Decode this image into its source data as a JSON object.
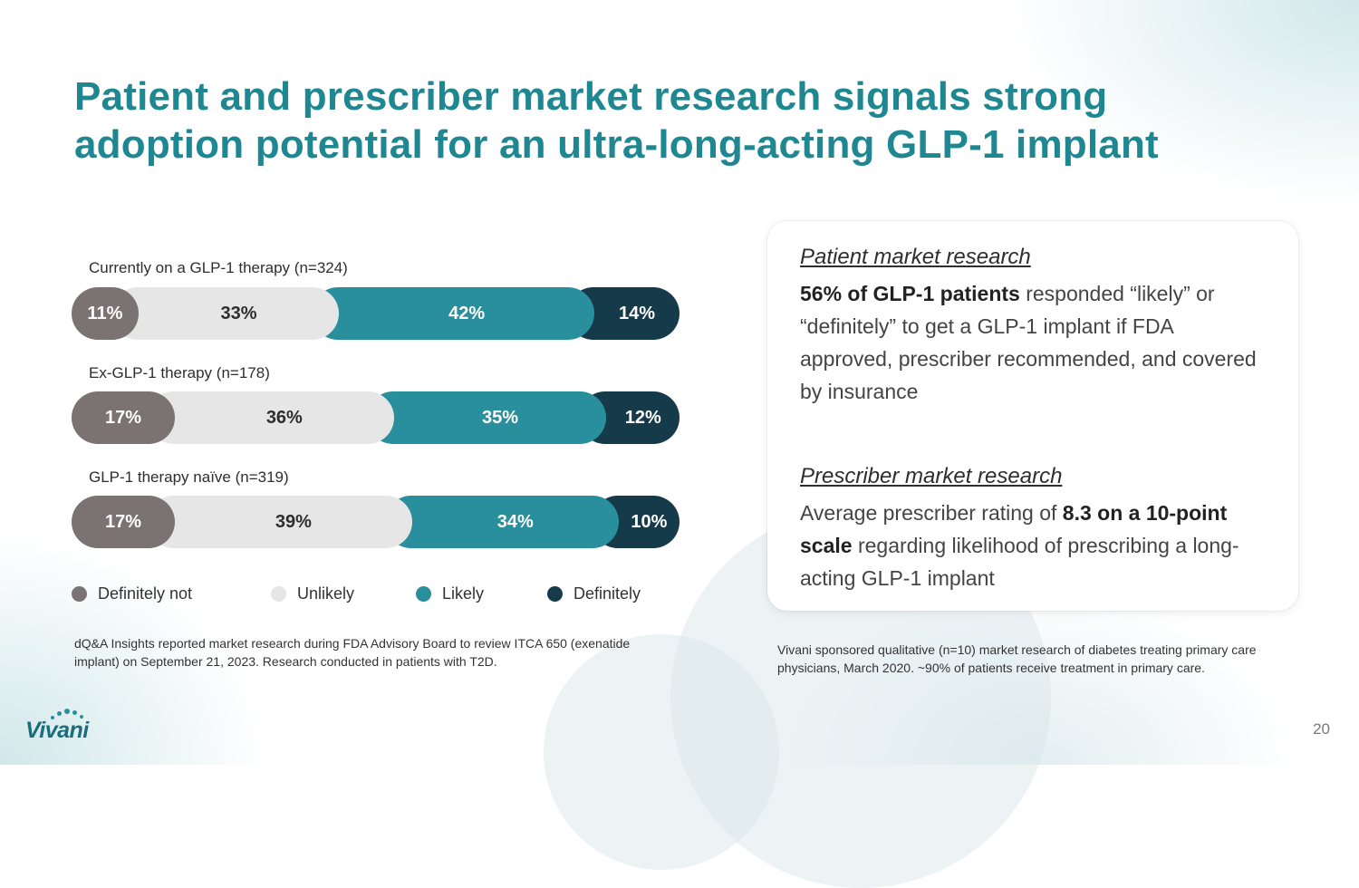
{
  "slide": {
    "title": "Patient and prescriber market research signals strong adoption potential for an ultra-long-acting GLP-1 implant",
    "page_number": "20",
    "logo_text": "Vivani"
  },
  "chart_data": {
    "type": "bar",
    "stacked": true,
    "orientation": "horizontal",
    "percent": true,
    "categories": [
      "Currently on a GLP-1 therapy (n=324)",
      "Ex-GLP-1 therapy (n=178)",
      "GLP-1 therapy naïve (n=319)"
    ],
    "series": [
      {
        "name": "Definitely not",
        "color": "#7b7274",
        "values": [
          11,
          17,
          17
        ],
        "labels": [
          "11%",
          "17%",
          "17%"
        ]
      },
      {
        "name": "Unlikely",
        "color": "#e6e6e6",
        "values": [
          33,
          36,
          39
        ],
        "labels": [
          "33%",
          "36%",
          "39%"
        ]
      },
      {
        "name": "Likely",
        "color": "#2a8f9c",
        "values": [
          42,
          35,
          34
        ],
        "labels": [
          "42%",
          "35%",
          "34%"
        ]
      },
      {
        "name": "Definitely",
        "color": "#153a4a",
        "values": [
          14,
          12,
          10
        ],
        "labels": [
          "14%",
          "12%",
          "10%"
        ]
      }
    ],
    "legend_position": "bottom",
    "grid": false
  },
  "footnotes": {
    "left": "dQ&A Insights reported market research during FDA Advisory Board to review ITCA 650 (exenatide implant) on September 21, 2023. Research conducted in patients with T2D.",
    "right": "Vivani sponsored qualitative (n=10) market research of diabetes treating primary care physicians, March 2020. ~90% of patients receive treatment in primary care."
  },
  "card": {
    "patient": {
      "heading": "Patient market research",
      "bold": "56% of GLP-1 patients",
      "text": " responded “likely” or “definitely” to get a GLP-1 implant if FDA approved, prescriber recommended, and covered by insurance"
    },
    "prescriber": {
      "heading": "Prescriber market research",
      "text_pre": "Average prescriber rating of ",
      "bold": "8.3 on a 10-point scale",
      "text_post": " regarding likelihood of prescribing a long-acting GLP-1 implant"
    }
  }
}
